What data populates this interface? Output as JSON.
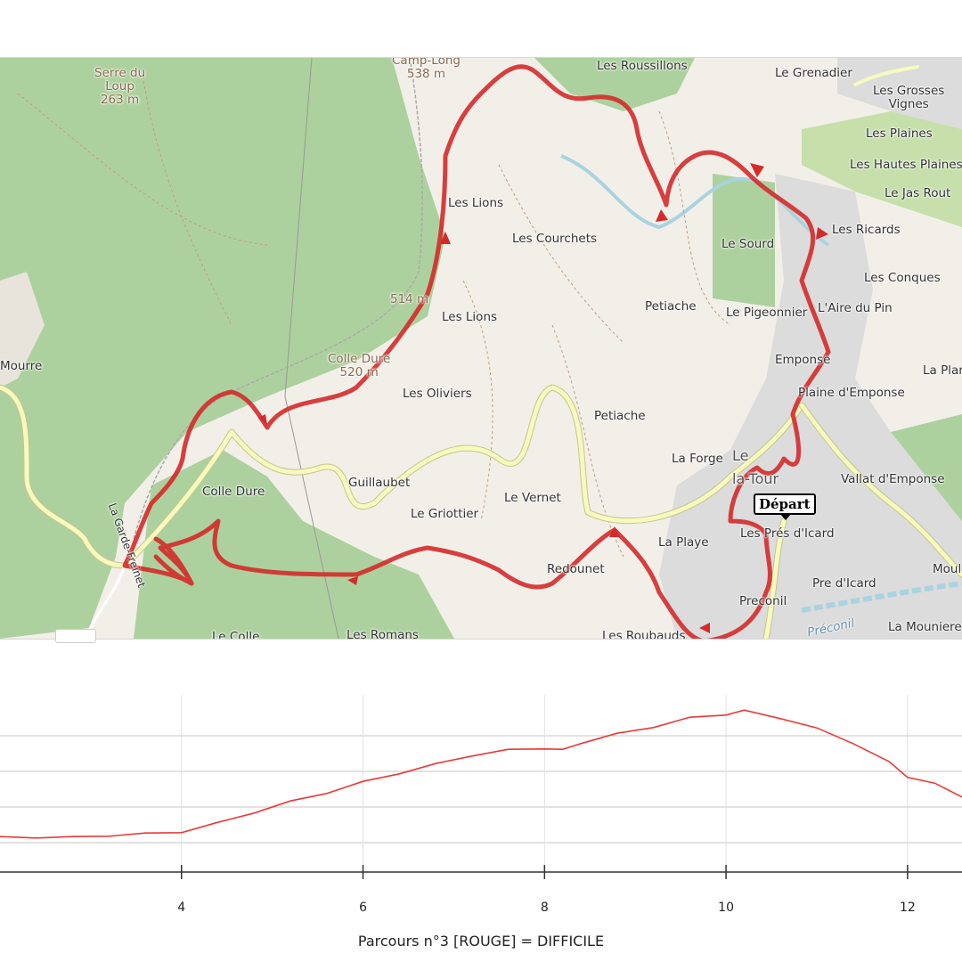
{
  "map": {
    "start_marker": "Départ",
    "places": [
      {
        "id": "serre-du-loup",
        "name": "Serre du\nLoup\n263 m",
        "kind": "peak"
      },
      {
        "id": "camp-long",
        "name": "Camp-Long\n538 m",
        "kind": "peak"
      },
      {
        "id": "les-roussillons",
        "name": "Les Roussillons"
      },
      {
        "id": "le-grenadier",
        "name": "Le Grenadier"
      },
      {
        "id": "les-grosses-vignes",
        "name": "Les Grosses\nVignes"
      },
      {
        "id": "les-plaines",
        "name": "Les Plaines"
      },
      {
        "id": "les-hautes-plaines",
        "name": "Les Hautes Plaines"
      },
      {
        "id": "le-jas-rout",
        "name": "Le Jas Rout"
      },
      {
        "id": "les-ricards",
        "name": "Les Ricards"
      },
      {
        "id": "les-conques",
        "name": "Les Conques"
      },
      {
        "id": "le-sourd",
        "name": "Le Sourd"
      },
      {
        "id": "les-lions-1",
        "name": "Les Lions"
      },
      {
        "id": "les-courchets",
        "name": "Les Courchets"
      },
      {
        "id": "alt-514",
        "name": "514 m",
        "kind": "peak"
      },
      {
        "id": "les-lions-2",
        "name": "Les Lions"
      },
      {
        "id": "petiache-1",
        "name": "Petiache"
      },
      {
        "id": "le-pigeonnier",
        "name": "Le Pigeonnier"
      },
      {
        "id": "laire-du-pin",
        "name": "L'Aire du Pin"
      },
      {
        "id": "colle-dure-peak",
        "name": "Colle Dure\n520 m",
        "kind": "peak"
      },
      {
        "id": "mourre",
        "name": "Mourre"
      },
      {
        "id": "emponse",
        "name": "Emponse"
      },
      {
        "id": "la-plan",
        "name": "La Plan"
      },
      {
        "id": "les-oliviers",
        "name": "Les Oliviers"
      },
      {
        "id": "plaine-demponse",
        "name": "Plaine d'Emponse"
      },
      {
        "id": "petiache-2",
        "name": "Petiache"
      },
      {
        "id": "la-forge",
        "name": "La Forge"
      },
      {
        "id": "le-la-tour",
        "name": "Le\nla-Tour"
      },
      {
        "id": "vallat-demponse",
        "name": "Vallat d'Emponse"
      },
      {
        "id": "colle-dure",
        "name": "Colle Dure"
      },
      {
        "id": "guillaubet",
        "name": "Guillaubet"
      },
      {
        "id": "le-griottier",
        "name": "Le Griottier"
      },
      {
        "id": "le-vernet",
        "name": "Le Vernet"
      },
      {
        "id": "la-playe",
        "name": "La Playe"
      },
      {
        "id": "les-pres-dicard",
        "name": "Les Prés d'Icard"
      },
      {
        "id": "la-garde-freinet",
        "name": "La Garde-Freinet",
        "kind": "road"
      },
      {
        "id": "redounet",
        "name": "Redounet"
      },
      {
        "id": "moul",
        "name": "Moul"
      },
      {
        "id": "pre-dicard",
        "name": "Pre d'Icard"
      },
      {
        "id": "preconil",
        "name": "Preconil"
      },
      {
        "id": "preconil-river",
        "name": "Préconil",
        "kind": "water"
      },
      {
        "id": "la-mouniere",
        "name": "La Mouniere"
      },
      {
        "id": "le-colle",
        "name": "Le Colle"
      },
      {
        "id": "les-romans",
        "name": "Les Romans"
      },
      {
        "id": "les-roubauds",
        "name": "Les Roubauds"
      }
    ]
  },
  "colors": {
    "track": "#d42a2a",
    "forest": "#add19e",
    "urban": "#dcdcdc",
    "road": "#f7fabf",
    "road_edge": "#c7c58a",
    "water": "#aad3df",
    "profile_line": "#e83a3a"
  },
  "chart_data": {
    "type": "line",
    "title": "",
    "xlabel": "",
    "ylabel": "",
    "x_ticks": [
      4,
      6,
      8,
      10,
      12
    ],
    "xlim": [
      2.0,
      12.6
    ],
    "ylim": [
      0,
      100
    ],
    "grid": true,
    "series": [
      {
        "x": [
          2.0,
          2.4,
          2.8,
          3.2,
          3.6,
          4.0,
          4.4,
          4.8,
          5.2,
          5.6,
          6.0,
          6.4,
          6.8,
          7.2,
          7.6,
          8.0,
          8.2,
          8.4,
          8.8,
          9.2,
          9.6,
          10.0,
          10.2,
          10.6,
          11.0,
          11.4,
          11.8,
          12.0,
          12.3,
          12.6
        ],
        "y": [
          3,
          3,
          3,
          4,
          5,
          6,
          11,
          17,
          23,
          28,
          34,
          39,
          44,
          49,
          52,
          53,
          52,
          56,
          61,
          65,
          70,
          72,
          74,
          70,
          64,
          56,
          45,
          37,
          33,
          26
        ]
      }
    ],
    "caption": "Parcours n°3 [ROUGE] = DIFFICILE"
  }
}
